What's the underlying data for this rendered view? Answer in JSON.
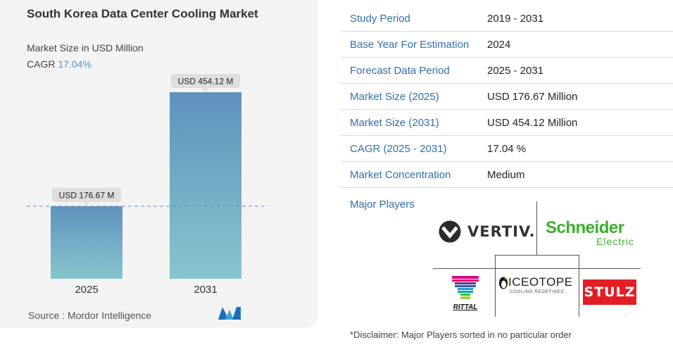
{
  "header": {
    "title": "South Korea Data Center Cooling Market",
    "subtitle": "Market Size in USD Million",
    "cagr_label": "CAGR",
    "cagr_value": "17.04%"
  },
  "chart_data": {
    "type": "bar",
    "categories": [
      "2025",
      "2031"
    ],
    "values": [
      176.67,
      454.12
    ],
    "data_labels": [
      "USD 176.67 M",
      "USD 454.12 M"
    ],
    "title": "South Korea Data Center Cooling Market",
    "subtitle": "Market Size in USD Million",
    "ylim": [
      0,
      454.12
    ],
    "reference_line": 176.67,
    "colors": {
      "bar_top": "#5e91bd",
      "bar_bottom": "#86c6cd",
      "reference_line": "#6b8fb3"
    }
  },
  "footer": {
    "source_label": "Source :",
    "source_value": "Mordor Intelligence"
  },
  "table": {
    "rows": [
      {
        "label": "Study Period",
        "value": "2019 - 2031"
      },
      {
        "label": "Base Year For Estimation",
        "value": "2024"
      },
      {
        "label": "Forecast Data Period",
        "value": "2025 - 2031"
      },
      {
        "label": "Market Size (2025)",
        "value": "USD 176.67 Million"
      },
      {
        "label": "Market Size (2031)",
        "value": "USD 454.12 Million"
      },
      {
        "label": "CAGR (2025 - 2031)",
        "value": "17.04 %"
      },
      {
        "label": "Market Concentration",
        "value": "Medium"
      }
    ]
  },
  "players": {
    "label": "Major Players",
    "vertiv": "VERTIV.",
    "schneider_name": "Schneider",
    "schneider_sub": "Electric",
    "rittal": "RITTAL",
    "iceotope_name": "ICEOTOPE",
    "iceotope_tag": "COOLING REDEFINED",
    "stulz": "STULZ"
  },
  "disclaimer": "*Disclaimer: Major Players sorted in no particular order"
}
